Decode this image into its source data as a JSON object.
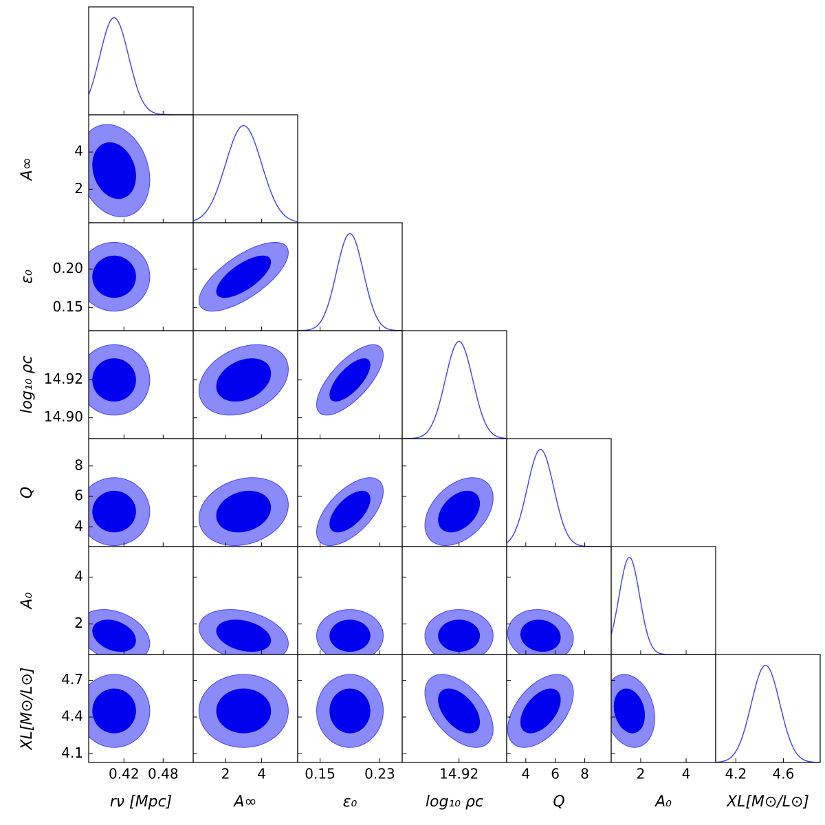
{
  "chart_data": {
    "type": "corner",
    "params": [
      {
        "label": "rν [Mpc]",
        "lim": [
          0.366,
          0.526
        ],
        "xticks": [
          0.42,
          0.48
        ],
        "mean": 0.405,
        "sd": 0.022
      },
      {
        "label": "A∞",
        "lim": [
          0.2,
          6.0
        ],
        "xticks": [
          2,
          4
        ],
        "yticks": [
          2,
          4
        ],
        "mean": 3.0,
        "sd": 1.0
      },
      {
        "label": "ε₀",
        "lim": [
          0.12,
          0.26
        ],
        "xticks": [
          0.15,
          0.23
        ],
        "yticks": [
          0.15,
          {
            "value": 0.2,
            "label": "0.20"
          }
        ],
        "mean": 0.19,
        "sd": 0.018
      },
      {
        "label": "log₁₀ ρc",
        "lim": [
          14.889,
          14.946
        ],
        "xticks": [
          14.92
        ],
        "yticks": [
          {
            "value": 14.9,
            "label": "14.90"
          },
          14.92
        ],
        "mean": 14.92,
        "sd": 0.0075
      },
      {
        "label": "Q",
        "lim": [
          2.7,
          9.8
        ],
        "xticks": [
          4,
          6,
          8
        ],
        "yticks": [
          4,
          6,
          8
        ],
        "mean": 5.0,
        "sd": 0.9
      },
      {
        "label": "A₀",
        "lim": [
          0.7,
          5.3
        ],
        "xticks": [
          2,
          4
        ],
        "yticks": [
          2,
          4
        ],
        "mean": 1.5,
        "sd": 0.45
      },
      {
        "label": "XL[M⊙/L⊙]",
        "lim": [
          4.03,
          4.91
        ],
        "xticks": [
          4.2,
          4.6
        ],
        "yticks": [
          4.1,
          4.4,
          4.7
        ],
        "mean": 4.45,
        "sd": 0.12
      }
    ],
    "correlations": [
      [],
      [
        -0.2
      ],
      [
        0,
        0.7
      ],
      [
        0,
        0.3,
        0.7
      ],
      [
        0,
        0.2,
        0.6,
        0.4
      ],
      [
        -0.3,
        -0.3,
        0,
        0,
        -0.1
      ],
      [
        0,
        0,
        0,
        -0.5,
        0.5,
        -0.2
      ]
    ],
    "colors": {
      "line": "#4646ff",
      "inner": "#0000ee",
      "outer": "#8a8af8"
    }
  }
}
